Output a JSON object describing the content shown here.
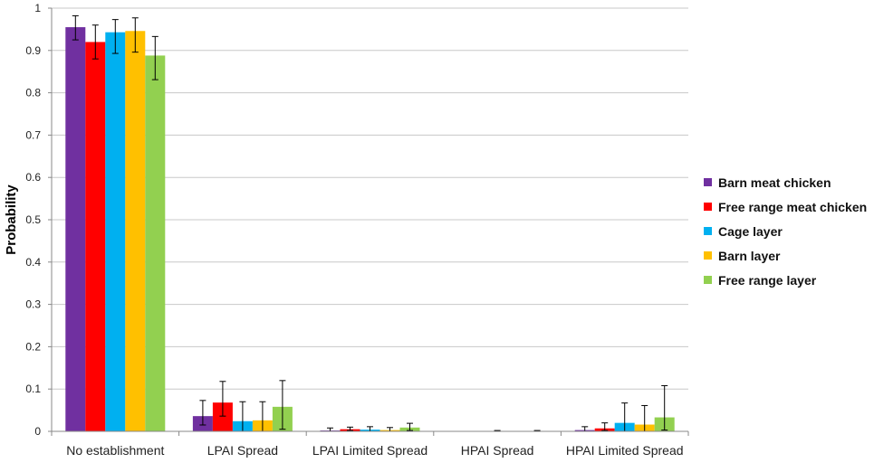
{
  "chart_data": {
    "type": "bar",
    "title": "",
    "xlabel": "",
    "ylabel": "Probability",
    "ylim": [
      0,
      1
    ],
    "yticks": [
      "0",
      "0.1",
      "0.2",
      "0.3",
      "0.4",
      "0.5",
      "0.6",
      "0.7",
      "0.8",
      "0.9",
      "1"
    ],
    "grid": true,
    "legend_position": "right",
    "categories": [
      "No establishment",
      "LPAI Spread",
      "LPAI Limited Spread",
      "HPAI Spread",
      "HPAI Limited Spread"
    ],
    "series": [
      {
        "name": "Barn meat chicken",
        "color": "#7030A0",
        "values": [
          0.955,
          0.036,
          0.002,
          0.0,
          0.003
        ],
        "err_low": [
          0.03,
          0.021,
          0.002,
          0.0,
          0.003
        ],
        "err_high": [
          0.027,
          0.037,
          0.006,
          0.0,
          0.008
        ]
      },
      {
        "name": "Free range meat chicken",
        "color": "#FF0000",
        "values": [
          0.92,
          0.068,
          0.005,
          0.0,
          0.007
        ],
        "err_low": [
          0.04,
          0.032,
          0.003,
          0.0,
          0.005
        ],
        "err_high": [
          0.04,
          0.05,
          0.005,
          0.0,
          0.013
        ]
      },
      {
        "name": "Cage layer",
        "color": "#00B0F0",
        "values": [
          0.943,
          0.024,
          0.004,
          0.001,
          0.02
        ],
        "err_low": [
          0.05,
          0.024,
          0.004,
          0.001,
          0.02
        ],
        "err_high": [
          0.03,
          0.046,
          0.007,
          0.001,
          0.047
        ]
      },
      {
        "name": "Barn layer",
        "color": "#FFC000",
        "values": [
          0.946,
          0.026,
          0.003,
          0.0,
          0.016
        ],
        "err_low": [
          0.05,
          0.026,
          0.003,
          0.0,
          0.016
        ],
        "err_high": [
          0.031,
          0.044,
          0.006,
          0.0,
          0.045
        ]
      },
      {
        "name": "Free range layer",
        "color": "#92D050",
        "values": [
          0.888,
          0.058,
          0.009,
          0.001,
          0.033
        ],
        "err_low": [
          0.057,
          0.053,
          0.007,
          0.001,
          0.03
        ],
        "err_high": [
          0.045,
          0.062,
          0.01,
          0.001,
          0.075
        ]
      }
    ]
  }
}
